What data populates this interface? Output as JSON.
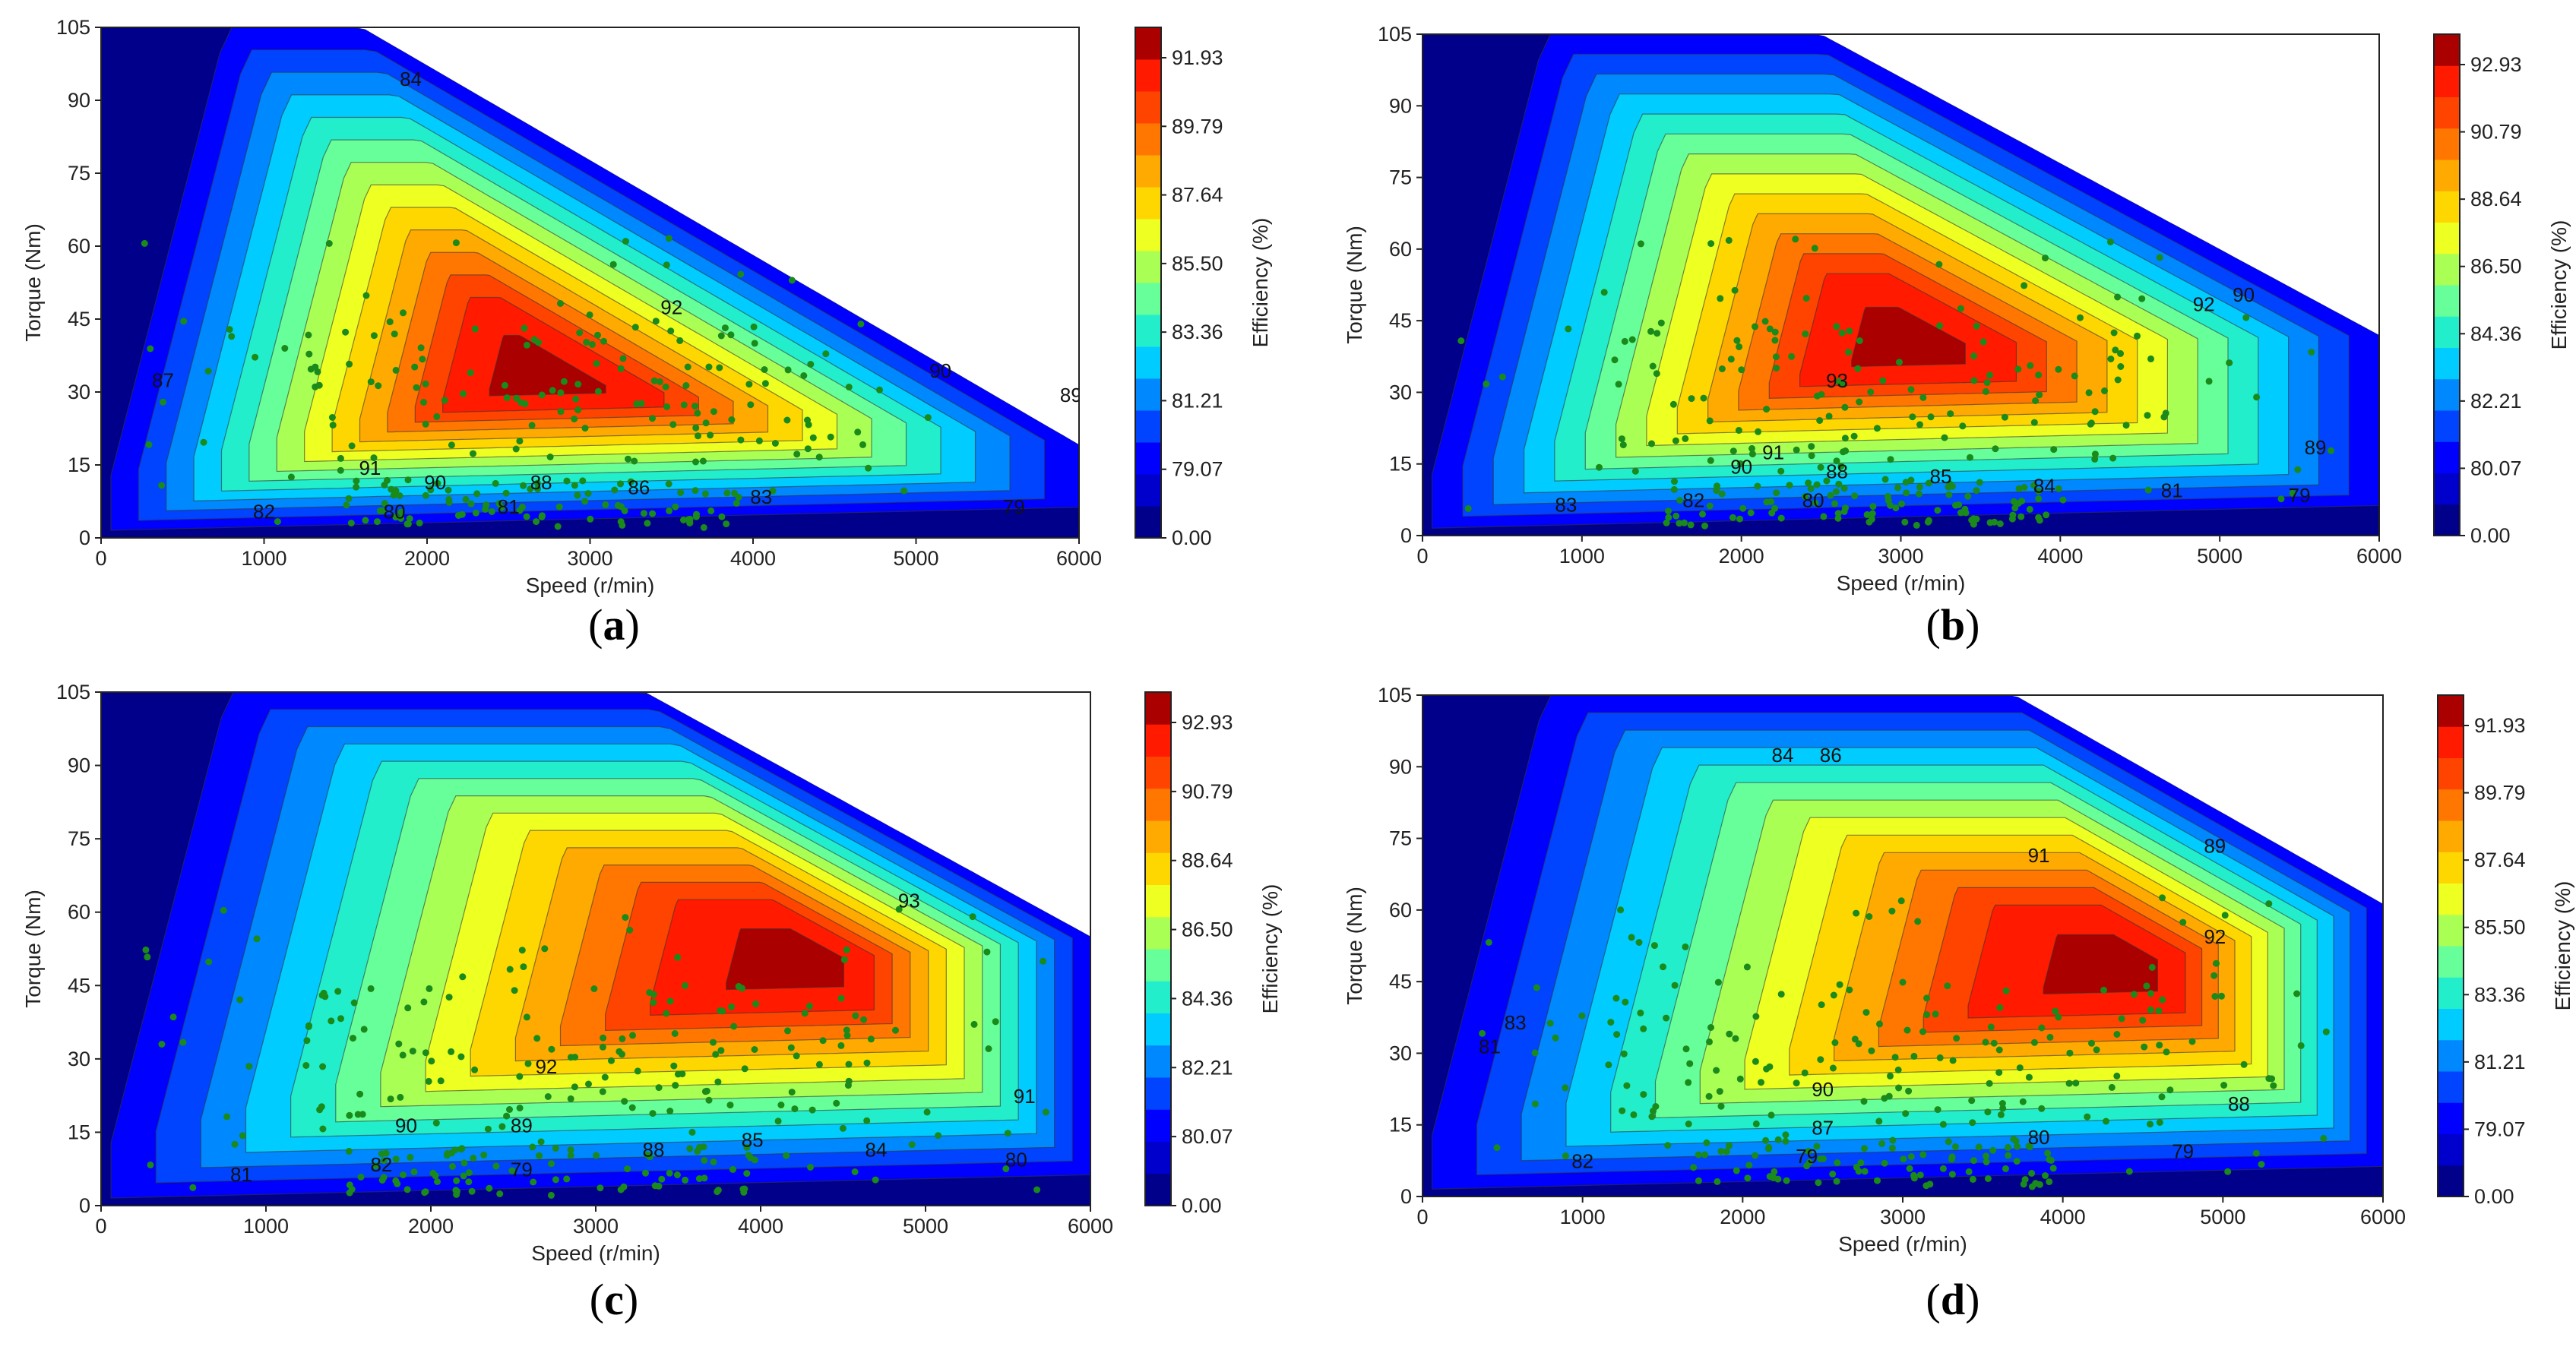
{
  "figure": {
    "description_free": true,
    "colors": {
      "background_low": "#00008b",
      "band_palette": [
        "#0000ff",
        "#0044ff",
        "#0088ff",
        "#00ccff",
        "#22eecc",
        "#66ff99",
        "#aaff55",
        "#eeff22",
        "#ffd700",
        "#ffaa00",
        "#ff7700",
        "#ff4400",
        "#ff1a00",
        "#aa0000"
      ],
      "points": "#1a8a1a",
      "contour_line": "#333333"
    }
  },
  "chart_data": [
    {
      "panel": "a",
      "type": "heatmap",
      "caption": "(a)",
      "caption_letter": "a",
      "xlabel": "Speed  (r/min)",
      "ylabel": "Torque  (Nm)",
      "colorbar_label": "Efficiency (%)",
      "xlim": [
        0,
        6000
      ],
      "ylim": [
        0,
        105
      ],
      "x_ticks": [
        "0",
        "1000",
        "2000",
        "3000",
        "4000",
        "5000",
        "6000"
      ],
      "y_ticks": [
        "0",
        "15",
        "30",
        "45",
        "60",
        "75",
        "90",
        "105"
      ],
      "colorbar_ticks": [
        "91.93",
        "89.79",
        "87.64",
        "85.50",
        "83.36",
        "81.21",
        "79.07",
        "0.00"
      ],
      "peak_efficiency_region": {
        "speed_center": 2700,
        "torque_center": 33
      },
      "contour_labels": [
        {
          "text": "84",
          "x": 1900,
          "y": 93
        },
        {
          "text": "87",
          "x": 380,
          "y": 31
        },
        {
          "text": "92",
          "x": 3500,
          "y": 46
        },
        {
          "text": "90",
          "x": 5150,
          "y": 33
        },
        {
          "text": "89",
          "x": 5950,
          "y": 28
        },
        {
          "text": "91",
          "x": 1650,
          "y": 13
        },
        {
          "text": "90",
          "x": 2050,
          "y": 10
        },
        {
          "text": "88",
          "x": 2700,
          "y": 10
        },
        {
          "text": "86",
          "x": 3300,
          "y": 9
        },
        {
          "text": "82",
          "x": 1000,
          "y": 4
        },
        {
          "text": "80",
          "x": 1800,
          "y": 4
        },
        {
          "text": "81",
          "x": 2500,
          "y": 5
        },
        {
          "text": "83",
          "x": 4050,
          "y": 7
        },
        {
          "text": "79",
          "x": 5600,
          "y": 5
        }
      ]
    },
    {
      "panel": "b",
      "type": "heatmap",
      "caption": "(b)",
      "caption_letter": "b",
      "xlabel": "Speed  (r/min)",
      "ylabel": "Torque  (Nm)",
      "colorbar_label": "Efficiency (%)",
      "xlim": [
        0,
        6000
      ],
      "ylim": [
        0,
        105
      ],
      "x_ticks": [
        "0",
        "1000",
        "2000",
        "3000",
        "4000",
        "5000",
        "6000"
      ],
      "y_ticks": [
        "0",
        "15",
        "30",
        "45",
        "60",
        "75",
        "90",
        "105"
      ],
      "colorbar_ticks": [
        "92.93",
        "90.79",
        "88.64",
        "86.50",
        "84.36",
        "82.21",
        "80.07",
        "0.00"
      ],
      "peak_efficiency_region": {
        "speed_center": 3000,
        "torque_center": 40
      },
      "contour_labels": [
        {
          "text": "92",
          "x": 4900,
          "y": 47
        },
        {
          "text": "90",
          "x": 5150,
          "y": 49
        },
        {
          "text": "93",
          "x": 2600,
          "y": 31
        },
        {
          "text": "91",
          "x": 2200,
          "y": 16
        },
        {
          "text": "90",
          "x": 2000,
          "y": 13
        },
        {
          "text": "88",
          "x": 2600,
          "y": 12
        },
        {
          "text": "85",
          "x": 3250,
          "y": 11
        },
        {
          "text": "84",
          "x": 3900,
          "y": 9
        },
        {
          "text": "89",
          "x": 5600,
          "y": 17
        },
        {
          "text": "81",
          "x": 4700,
          "y": 8
        },
        {
          "text": "79",
          "x": 5500,
          "y": 7
        },
        {
          "text": "83",
          "x": 900,
          "y": 5
        },
        {
          "text": "82",
          "x": 1700,
          "y": 6
        },
        {
          "text": "80",
          "x": 2450,
          "y": 6
        }
      ]
    },
    {
      "panel": "c",
      "type": "heatmap",
      "caption": "(c)",
      "caption_letter": "c",
      "xlabel": "Speed  (r/min)",
      "ylabel": "Torque  (Nm)",
      "colorbar_label": "Efficiency (%)",
      "xlim": [
        0,
        6000
      ],
      "ylim": [
        0,
        105
      ],
      "x_ticks": [
        "0",
        "1000",
        "2000",
        "3000",
        "4000",
        "5000",
        "6000"
      ],
      "y_ticks": [
        "0",
        "15",
        "30",
        "45",
        "60",
        "75",
        "90",
        "105"
      ],
      "colorbar_ticks": [
        "92.93",
        "90.79",
        "88.64",
        "86.50",
        "84.36",
        "82.21",
        "80.07",
        "0.00"
      ],
      "peak_efficiency_region": {
        "speed_center": 4400,
        "torque_center": 50
      },
      "contour_labels": [
        {
          "text": "93",
          "x": 4900,
          "y": 61
        },
        {
          "text": "92",
          "x": 2700,
          "y": 27
        },
        {
          "text": "91",
          "x": 5600,
          "y": 21
        },
        {
          "text": "90",
          "x": 1850,
          "y": 15
        },
        {
          "text": "89",
          "x": 2550,
          "y": 15
        },
        {
          "text": "88",
          "x": 3350,
          "y": 10
        },
        {
          "text": "85",
          "x": 3950,
          "y": 12
        },
        {
          "text": "84",
          "x": 4700,
          "y": 10
        },
        {
          "text": "80",
          "x": 5550,
          "y": 8
        },
        {
          "text": "81",
          "x": 850,
          "y": 5
        },
        {
          "text": "82",
          "x": 1700,
          "y": 7
        },
        {
          "text": "79",
          "x": 2550,
          "y": 6
        }
      ]
    },
    {
      "panel": "d",
      "type": "heatmap",
      "caption": "(d)",
      "caption_letter": "d",
      "xlabel": "Speed  (r/min)",
      "ylabel": "Torque  (Nm)",
      "colorbar_label": "Efficiency (%)",
      "xlim": [
        0,
        6000
      ],
      "ylim": [
        0,
        105
      ],
      "x_ticks": [
        "0",
        "1000",
        "2000",
        "3000",
        "4000",
        "5000",
        "6000"
      ],
      "y_ticks": [
        "0",
        "15",
        "30",
        "45",
        "60",
        "75",
        "90",
        "105"
      ],
      "colorbar_ticks": [
        "91.93",
        "89.79",
        "87.64",
        "85.50",
        "83.36",
        "81.21",
        "79.07",
        "0.00"
      ],
      "peak_efficiency_region": {
        "speed_center": 4700,
        "torque_center": 52
      },
      "contour_labels": [
        {
          "text": "84",
          "x": 2250,
          "y": 91
        },
        {
          "text": "86",
          "x": 2550,
          "y": 91
        },
        {
          "text": "91",
          "x": 3850,
          "y": 70
        },
        {
          "text": "89",
          "x": 4950,
          "y": 72
        },
        {
          "text": "92",
          "x": 4950,
          "y": 53
        },
        {
          "text": "81",
          "x": 420,
          "y": 30
        },
        {
          "text": "83",
          "x": 580,
          "y": 35
        },
        {
          "text": "90",
          "x": 2500,
          "y": 21
        },
        {
          "text": "87",
          "x": 2500,
          "y": 13
        },
        {
          "text": "80",
          "x": 3850,
          "y": 11
        },
        {
          "text": "88",
          "x": 5100,
          "y": 18
        },
        {
          "text": "82",
          "x": 1000,
          "y": 6
        },
        {
          "text": "79",
          "x": 2400,
          "y": 7
        },
        {
          "text": "79",
          "x": 4750,
          "y": 8
        }
      ]
    }
  ]
}
